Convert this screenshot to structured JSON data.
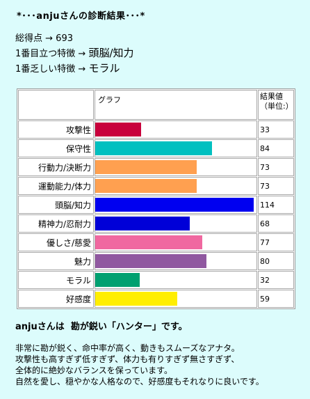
{
  "title": "*･･･anjuさんの診断結果･･･*",
  "summary": {
    "total_label": "総得点 → ",
    "total_value": "693",
    "top_label": "1番目立つ特徴 → ",
    "top_value": "頭脳/知力",
    "low_label": "1番乏しい特徴 → ",
    "low_value": "モラル"
  },
  "table": {
    "graph_header": "グラフ",
    "value_header_line1": "結果値",
    "value_header_line2": "（単位:）"
  },
  "chart_data": {
    "type": "bar",
    "orientation": "horizontal",
    "categories": [
      "攻撃性",
      "保守性",
      "行動力/決断力",
      "運動能力/体力",
      "頭脳/知力",
      "精神力/忍耐力",
      "優しさ/慈愛",
      "魅力",
      "モラル",
      "好感度"
    ],
    "values": [
      33,
      84,
      73,
      73,
      114,
      68,
      77,
      80,
      32,
      59
    ],
    "colors": [
      "#c8003c",
      "#00c0c0",
      "#ffa050",
      "#ffa050",
      "#0000f0",
      "#0000d8",
      "#f068a0",
      "#9058a0",
      "#00a070",
      "#ffee00"
    ],
    "value_max": 116
  },
  "result": {
    "name": "anjuさんは",
    "type_text": "勘が鋭い「ハンター」です。"
  },
  "description": [
    "非常に勘が鋭く、命中率が高く、動きもスムーズなアナタ。",
    "攻撃性も高すぎず低すぎず、体力も有りすぎず無さすぎず、",
    "全体的に絶妙なバランスを保っています。",
    "自然を愛し、穏やかな人格なので、好感度もそれなりに良いです。"
  ]
}
